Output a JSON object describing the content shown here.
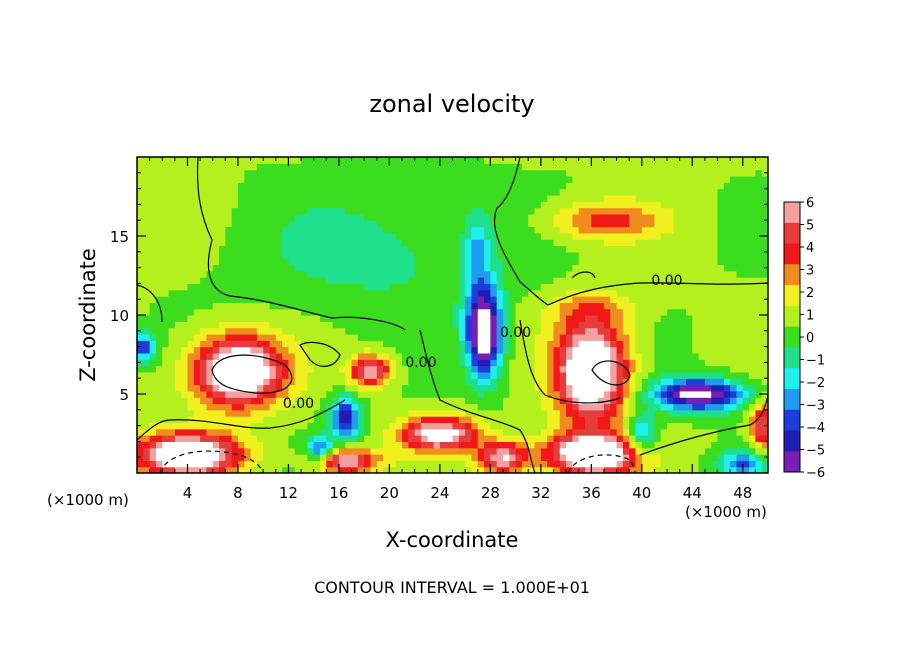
{
  "chart_data": {
    "type": "heatmap",
    "title": "zonal velocity",
    "xlabel": "X-coordinate",
    "ylabel": "Z-coordinate",
    "x_unit": "(×1000 m)",
    "x_unit_right": "(×1000 m)",
    "footer": "CONTOUR INTERVAL = 1.000E+01",
    "xlim": [
      0,
      50
    ],
    "ylim": [
      0,
      20
    ],
    "x_ticks": [
      4,
      8,
      12,
      16,
      20,
      24,
      28,
      32,
      36,
      40,
      44,
      48
    ],
    "x_tick_labels": [
      "4",
      "8",
      "12",
      "16",
      "20",
      "24",
      "28",
      "32",
      "36",
      "40",
      "44",
      "48"
    ],
    "y_ticks": [
      5,
      10,
      15
    ],
    "y_tick_labels": [
      "5",
      "10",
      "15"
    ],
    "colorbar": {
      "levels": [
        6,
        5,
        4,
        3,
        2,
        1,
        0,
        -1,
        -2,
        -3,
        -4,
        -5,
        -6
      ],
      "labels": [
        "6",
        "5",
        "4",
        "3",
        "2",
        "1",
        "0",
        "−1",
        "−2",
        "−3",
        "−4",
        "−5",
        "−6"
      ],
      "colors": [
        "#f4a0a0",
        "#e83c3c",
        "#f01818",
        "#f08c1e",
        "#f0f01e",
        "#b4f01e",
        "#3cdc1e",
        "#1ee08c",
        "#1ef0f0",
        "#1e9cf0",
        "#1e3cdc",
        "#1e1eb4",
        "#781eb4"
      ]
    },
    "contour_labels": [
      {
        "text": "0.00",
        "x": 42.0,
        "y": 11.9
      },
      {
        "text": "0.00",
        "x": 12.8,
        "y": 4.1
      },
      {
        "text": "0.00",
        "x": 22.5,
        "y": 6.7
      },
      {
        "text": "0.00",
        "x": 30.0,
        "y": 8.6
      }
    ],
    "features": [
      {
        "x": 8,
        "y": 6.5,
        "rx": 3.5,
        "ry": 2.2,
        "v": 9
      },
      {
        "x": 36,
        "y": 6.5,
        "rx": 2.8,
        "ry": 3.2,
        "v": 9
      },
      {
        "x": 27.5,
        "y": 9,
        "rx": 1.4,
        "ry": 2.8,
        "v": -9
      },
      {
        "x": 44.5,
        "y": 5,
        "rx": 3.5,
        "ry": 1.0,
        "v": -8
      },
      {
        "x": 37,
        "y": 16,
        "rx": 4.5,
        "ry": 1.2,
        "v": 3.2
      },
      {
        "x": 4,
        "y": 1.2,
        "rx": 4.0,
        "ry": 1.3,
        "v": 9
      },
      {
        "x": 36,
        "y": 1.2,
        "rx": 3.5,
        "ry": 1.3,
        "v": 9
      },
      {
        "x": 24,
        "y": 2.5,
        "rx": 3.0,
        "ry": 1.1,
        "v": 7
      },
      {
        "x": 29,
        "y": 1.0,
        "rx": 2.0,
        "ry": 1.0,
        "v": 6
      },
      {
        "x": 16.5,
        "y": 0.8,
        "rx": 2.5,
        "ry": 0.8,
        "v": 6
      },
      {
        "x": 18.5,
        "y": 6.5,
        "rx": 1.6,
        "ry": 1.0,
        "v": 6
      },
      {
        "x": 16.5,
        "y": 3.5,
        "rx": 1.2,
        "ry": 1.3,
        "v": -6
      },
      {
        "x": 14.5,
        "y": 1.5,
        "rx": 1.0,
        "ry": 0.8,
        "v": -5
      },
      {
        "x": 40,
        "y": 2.5,
        "rx": 1.2,
        "ry": 1.2,
        "v": -4
      },
      {
        "x": 0.5,
        "y": 8,
        "rx": 1.0,
        "ry": 0.9,
        "v": -5
      },
      {
        "x": 49.5,
        "y": 3,
        "rx": 1.0,
        "ry": 1.5,
        "v": 5
      },
      {
        "x": 48,
        "y": 0.6,
        "rx": 2.0,
        "ry": 0.8,
        "v": -4
      },
      {
        "x": 19,
        "y": 14,
        "rx": 10.0,
        "ry": 4.0,
        "v": -1.5
      },
      {
        "x": 27,
        "y": 14,
        "rx": 1.0,
        "ry": 2.5,
        "v": -2.5
      },
      {
        "x": 36,
        "y": 10.5,
        "rx": 3.5,
        "ry": 1.0,
        "v": 1.5
      }
    ]
  }
}
